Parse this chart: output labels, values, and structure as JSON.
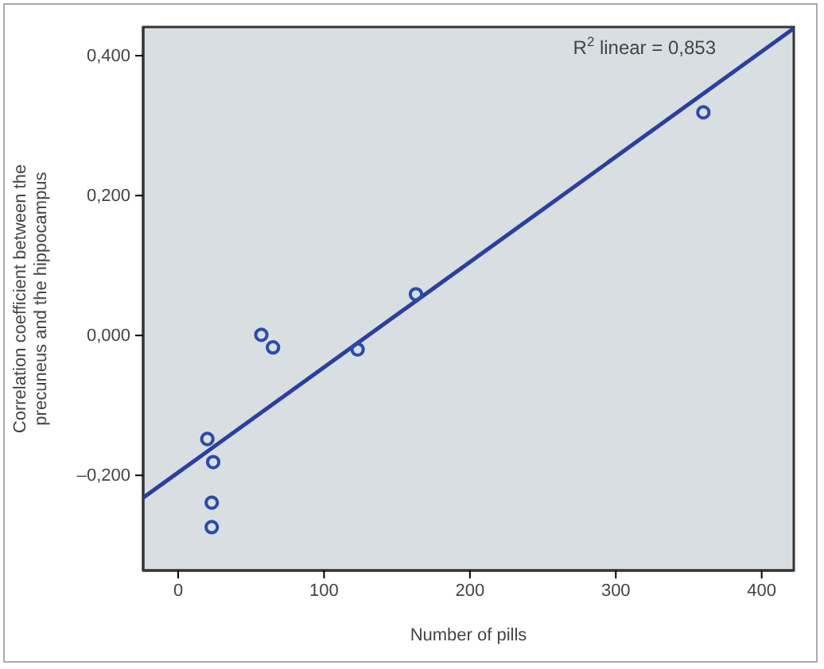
{
  "chart_data": {
    "type": "scatter",
    "xlabel": "Number of pills",
    "ylabel": "Correlation coefficient between the\nprecuneus and the hippocampus",
    "annotations": [
      "R$^{2}$ linear = 0,853"
    ],
    "xlim": [
      -24,
      422
    ],
    "ylim": [
      -0.336,
      0.441
    ],
    "xticks": [
      0,
      100,
      200,
      300,
      400
    ],
    "yticks": [
      {
        "value": -0.2,
        "label": "–0,200"
      },
      {
        "value": 0,
        "label": "0,000"
      },
      {
        "value": 0.2,
        "label": "0,200"
      },
      {
        "value": 0.4,
        "label": "0,400"
      }
    ],
    "grid": false,
    "series": [
      {
        "marker": "circle",
        "color": "#2b4ba8",
        "x": [
          20,
          24,
          23,
          23,
          57,
          65,
          123,
          163,
          360
        ],
        "values": [
          -0.148,
          -0.181,
          -0.239,
          -0.274,
          0.001,
          -0.017,
          -0.02,
          0.059,
          0.319
        ]
      },
      {
        "type": "line",
        "color": "#2a3f9e",
        "line_style": "solid",
        "x": [
          -24,
          422
        ],
        "values": [
          -0.232,
          0.439
        ]
      }
    ]
  }
}
